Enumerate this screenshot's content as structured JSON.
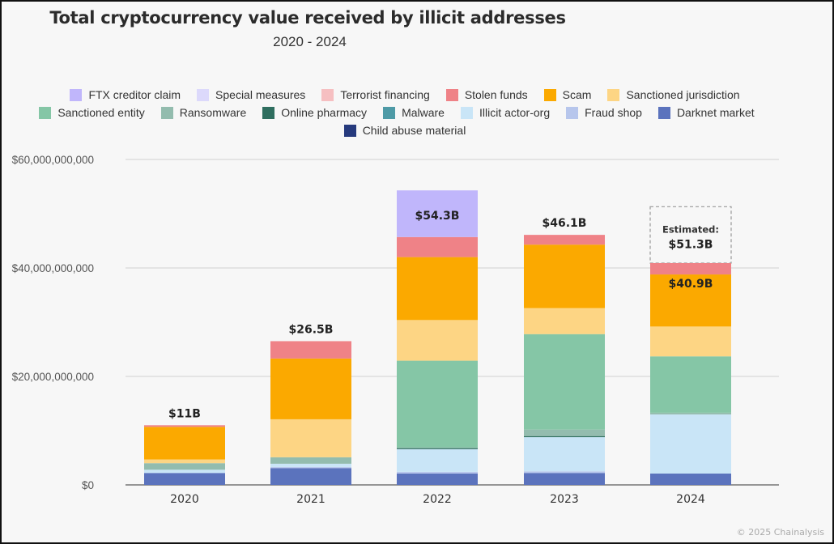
{
  "chart_data": {
    "type": "bar",
    "stacked": true,
    "title": "Total cryptocurrency value received by illicit addresses",
    "subtitle": "2020 - 2024",
    "xlabel": "",
    "ylabel": "",
    "ylim": [
      0,
      60000000000
    ],
    "yticks": [
      {
        "value": 0,
        "label": "$0"
      },
      {
        "value": 20000000000,
        "label": "$20,000,000,000"
      },
      {
        "value": 40000000000,
        "label": "$40,000,000,000"
      },
      {
        "value": 60000000000,
        "label": "$60,000,000,000"
      }
    ],
    "grid": true,
    "legend_position": "top",
    "categories": [
      "2020",
      "2021",
      "2022",
      "2023",
      "2024"
    ],
    "units": "USD billions",
    "series": [
      {
        "name": "Darknet market",
        "color": "#5b73bd",
        "values": [
          2.2,
          3.1,
          2.1,
          2.2,
          2.1
        ]
      },
      {
        "name": "Fraud shop",
        "color": "#b7c6ec",
        "values": [
          0.0,
          0.2,
          0.3,
          0.3,
          0.0
        ]
      },
      {
        "name": "Illicit actor-org",
        "color": "#c9e5f7",
        "values": [
          0.6,
          0.6,
          4.2,
          6.3,
          10.9
        ]
      },
      {
        "name": "Malware",
        "color": "#4e9aa6",
        "values": [
          0.0,
          0.0,
          0.0,
          0.0,
          0.0
        ]
      },
      {
        "name": "Online pharmacy",
        "color": "#2f6e5f",
        "values": [
          0.0,
          0.0,
          0.2,
          0.2,
          0.0
        ]
      },
      {
        "name": "Ransomware",
        "color": "#93bcae",
        "values": [
          1.2,
          1.2,
          0.1,
          1.2,
          0.3
        ]
      },
      {
        "name": "Sanctioned entity",
        "color": "#85c6a6",
        "values": [
          0.0,
          0.0,
          16.0,
          17.6,
          10.4
        ]
      },
      {
        "name": "Sanctioned jurisdiction",
        "color": "#fdd584",
        "values": [
          0.7,
          7.0,
          7.5,
          4.8,
          5.5
        ]
      },
      {
        "name": "Scam",
        "color": "#fba900",
        "values": [
          6.0,
          11.2,
          11.6,
          11.7,
          9.6
        ]
      },
      {
        "name": "Stolen funds",
        "color": "#ef8287",
        "values": [
          0.3,
          3.2,
          3.7,
          1.8,
          2.1
        ]
      },
      {
        "name": "Terrorist financing",
        "color": "#f6bfc1",
        "values": [
          0.0,
          0.0,
          0.0,
          0.0,
          0.0
        ]
      },
      {
        "name": "Special measures",
        "color": "#dcd9fb",
        "values": [
          0.0,
          0.0,
          0.0,
          0.0,
          0.0
        ]
      },
      {
        "name": "FTX creditor claim",
        "color": "#c0b6fb",
        "values": [
          0.0,
          0.0,
          8.6,
          0.0,
          0.0
        ]
      },
      {
        "name": "Child abuse material",
        "color": "#263a7d",
        "values": [
          0.0,
          0.0,
          0.0,
          0.0,
          0.0
        ]
      }
    ],
    "totals": [
      11.0,
      26.5,
      54.3,
      46.1,
      40.9
    ],
    "total_labels": [
      "$11B",
      "$26.5B",
      "$54.3B",
      "$46.1B",
      "$40.9B"
    ],
    "estimate": {
      "category": "2024",
      "value": 51.3,
      "label_line1": "Estimated:",
      "label_line2": "$51.3B"
    }
  },
  "legend": {
    "rows": [
      [
        {
          "label": "FTX creditor claim",
          "color": "#c0b6fb"
        },
        {
          "label": "Special measures",
          "color": "#dcd9fb"
        },
        {
          "label": "Terrorist financing",
          "color": "#f6bfc1"
        },
        {
          "label": "Stolen funds",
          "color": "#ef8287"
        },
        {
          "label": "Scam",
          "color": "#fba900"
        },
        {
          "label": "Sanctioned jurisdiction",
          "color": "#fdd584"
        }
      ],
      [
        {
          "label": "Sanctioned entity",
          "color": "#85c6a6"
        },
        {
          "label": "Ransomware",
          "color": "#93bcae"
        },
        {
          "label": "Online pharmacy",
          "color": "#2f6e5f"
        },
        {
          "label": "Malware",
          "color": "#4e9aa6"
        },
        {
          "label": "Illicit actor-org",
          "color": "#c9e5f7"
        },
        {
          "label": "Fraud shop",
          "color": "#b7c6ec"
        },
        {
          "label": "Darknet market",
          "color": "#5b73bd"
        }
      ],
      [
        {
          "label": "Child abuse material",
          "color": "#263a7d"
        }
      ]
    ]
  },
  "credit": "© 2025 Chainalysis"
}
